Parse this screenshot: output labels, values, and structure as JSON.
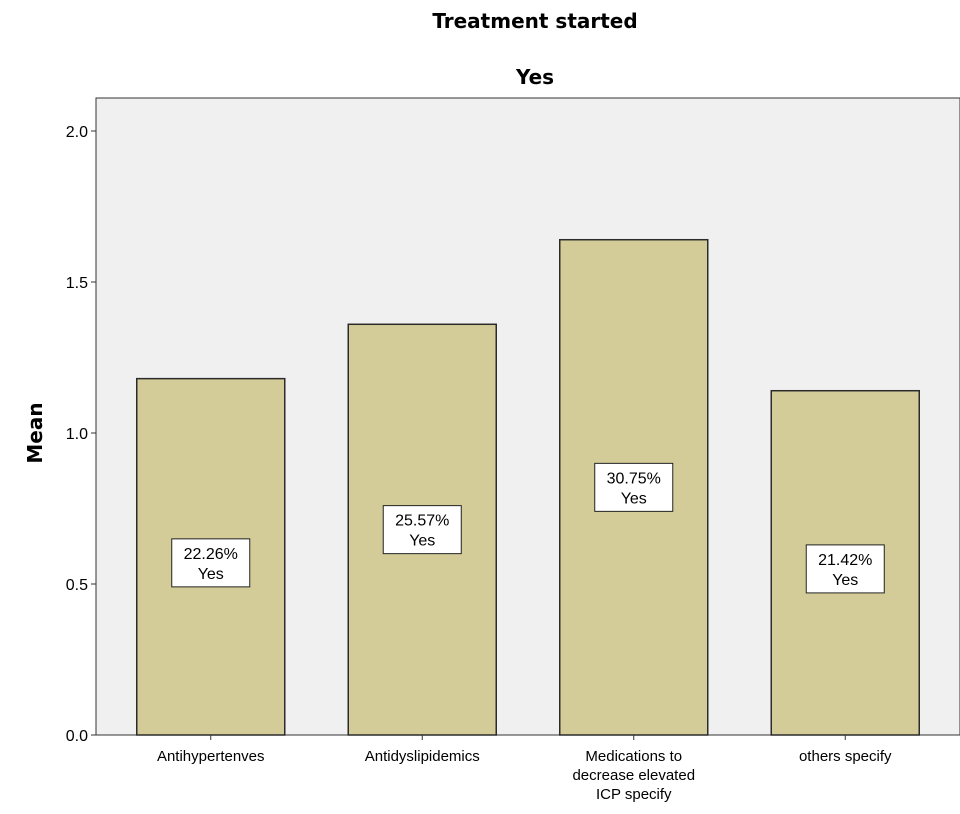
{
  "chart_data": {
    "type": "bar",
    "title": "Treatment started",
    "subtitle": "Yes",
    "ylabel": "Mean",
    "xlabel": "",
    "ylim": [
      0,
      2.0
    ],
    "yticks": [
      "0.0",
      "0.5",
      "1.0",
      "1.5",
      "2.0"
    ],
    "ytick_values": [
      0,
      0.5,
      1.0,
      1.5,
      2.0
    ],
    "categories": [
      [
        "Antihypertenves"
      ],
      [
        "Antidyslipidemics"
      ],
      [
        "Medications to",
        "decrease elevated",
        "ICP specify"
      ],
      [
        "others specify"
      ]
    ],
    "values": [
      1.18,
      1.36,
      1.64,
      1.14
    ],
    "data_labels": [
      {
        "pct": "22.26%",
        "cat": "Yes",
        "at": 0.57
      },
      {
        "pct": "25.57%",
        "cat": "Yes",
        "at": 0.68
      },
      {
        "pct": "30.75%",
        "cat": "Yes",
        "at": 0.82
      },
      {
        "pct": "21.42%",
        "cat": "Yes",
        "at": 0.55
      }
    ],
    "grid": false,
    "colors": {
      "bar": "#d3cc98",
      "bar_stroke": "#2b2b2b",
      "plot_bg": "#f0f0f0",
      "label_bg": "#ffffff"
    }
  }
}
